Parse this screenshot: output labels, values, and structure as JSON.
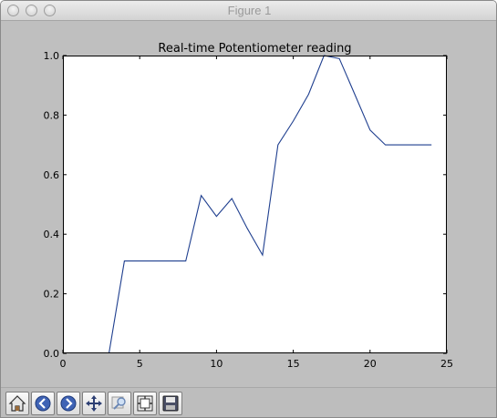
{
  "window": {
    "title": "Figure 1"
  },
  "toolbar": {
    "icons": [
      "home-icon",
      "back-icon",
      "forward-icon",
      "pan-icon",
      "zoom-icon",
      "subplots-icon",
      "save-icon"
    ]
  },
  "colors": {
    "line": "#1f3f8f",
    "plot_bg": "#ffffff",
    "figure_bg": "#bfbfbf"
  },
  "chart_data": {
    "type": "line",
    "title": "Real-time Potentiometer reading",
    "xlabel": "",
    "ylabel": "",
    "xlim": [
      0,
      25
    ],
    "ylim": [
      0.0,
      1.0
    ],
    "xticks": [
      "0",
      "5",
      "10",
      "15",
      "20",
      "25"
    ],
    "yticks": [
      "0.0",
      "0.2",
      "0.4",
      "0.6",
      "0.8",
      "1.0"
    ],
    "grid": false,
    "series": [
      {
        "x": [
          3,
          4,
          5,
          6,
          7,
          8,
          9,
          10,
          11,
          12,
          13,
          14,
          15,
          16,
          17,
          18,
          19,
          20,
          21,
          22,
          23,
          24
        ],
        "values": [
          0.0,
          0.31,
          0.31,
          0.31,
          0.31,
          0.31,
          0.53,
          0.46,
          0.52,
          0.42,
          0.33,
          0.7,
          0.78,
          0.87,
          1.0,
          0.99,
          0.87,
          0.75,
          0.7,
          0.7,
          0.7,
          0.7
        ]
      }
    ]
  }
}
